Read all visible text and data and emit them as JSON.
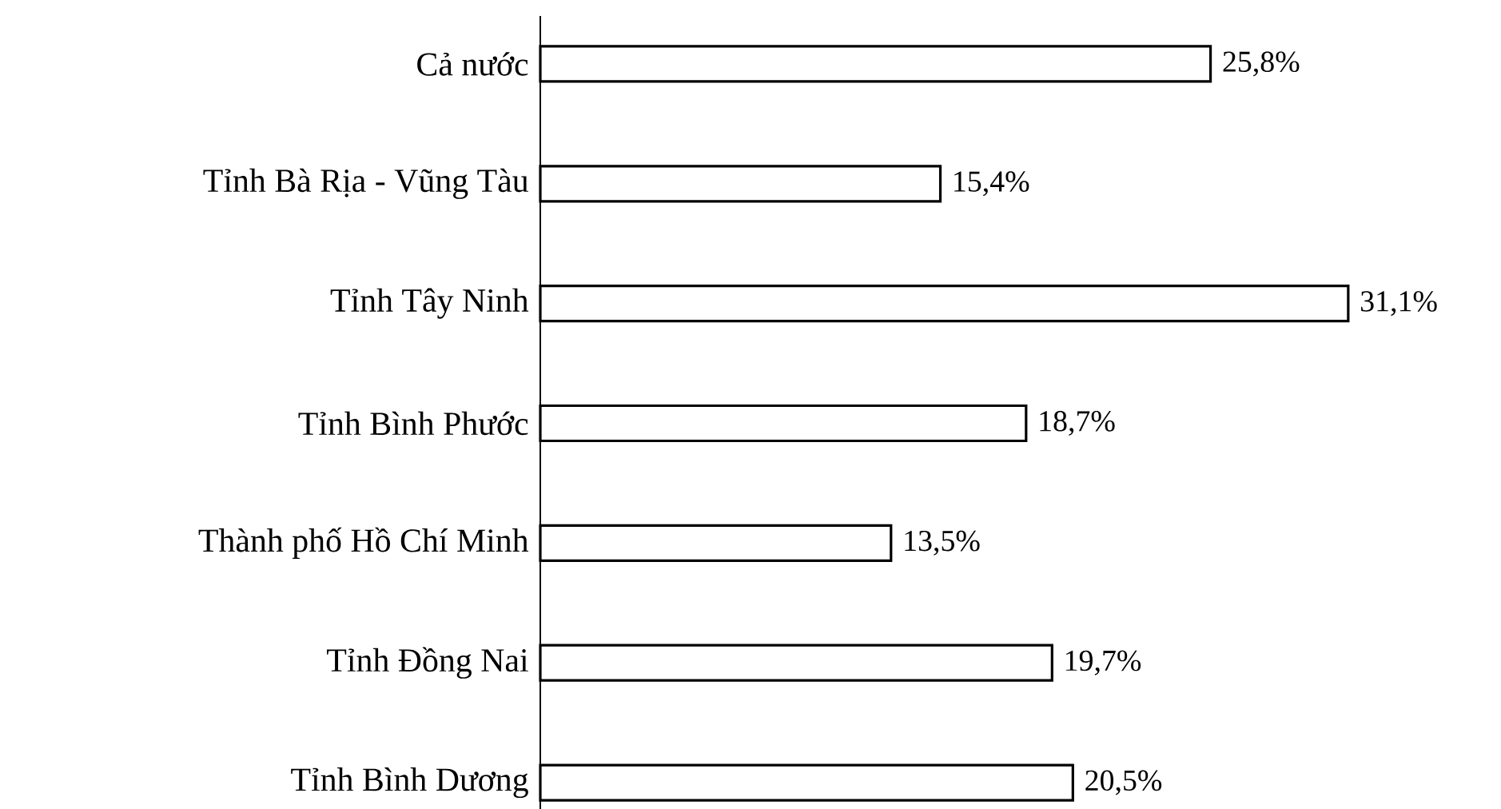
{
  "chart_data": {
    "type": "bar",
    "orientation": "horizontal",
    "categories": [
      "Cả nước",
      "Tỉnh Bà Rịa - Vũng Tàu",
      "Tỉnh Tây Ninh",
      "Tỉnh Bình Phước",
      "Thành phố Hồ Chí Minh",
      "Tỉnh Đồng Nai",
      "Tỉnh Bình Dương"
    ],
    "values": [
      25.8,
      15.4,
      31.1,
      18.7,
      13.5,
      19.7,
      20.5
    ],
    "value_labels": [
      "25,8%",
      "15,4%",
      "31,1%",
      "18,7%",
      "13,5%",
      "19,7%",
      "20,5%"
    ],
    "color": "#ffffff"
  }
}
